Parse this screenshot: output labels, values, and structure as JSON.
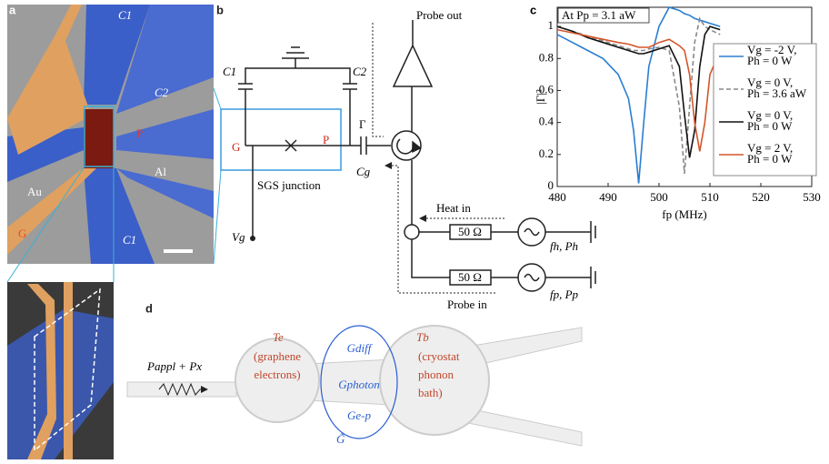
{
  "panels": {
    "a": {
      "label": "a",
      "texts": [
        "C1",
        "C2",
        "P",
        "Al",
        "Au",
        "G",
        "C1"
      ]
    },
    "b": {
      "label": "b",
      "texts": [
        "Probe out",
        "C1",
        "C2",
        "Γ",
        "G",
        "P",
        "Cg",
        "SGS junction",
        "Vg",
        "Heat in",
        "50 Ω",
        "fh, Ph",
        "50 Ω",
        "fp, Pp",
        "Probe in"
      ]
    },
    "d": {
      "label": "d",
      "texts": [
        "Pappl + Px",
        "Te",
        "(graphene",
        "electrons)",
        "Gdiff",
        "Gphoton",
        "Ge-p",
        "G̃",
        "Tb",
        "(cryostat",
        "phonon",
        "bath)"
      ]
    }
  },
  "chart_data": {
    "type": "line",
    "label": "c",
    "annotation": "At Pp = 3.1 aW",
    "x_label": "fp (MHz)",
    "y_label": "|Γ|²",
    "x": [
      480,
      483,
      486,
      489,
      492,
      494,
      495,
      496,
      497,
      498,
      500,
      502,
      504,
      505,
      506,
      507,
      508,
      509,
      510,
      512
    ],
    "series": [
      {
        "name": "Vg = -2 V, Ph = 0 W",
        "color": "#2a7ed2",
        "style": "solid",
        "values": [
          0.95,
          0.9,
          0.85,
          0.8,
          0.7,
          0.55,
          0.35,
          0.02,
          0.4,
          0.75,
          1.0,
          1.12,
          1.1,
          1.08,
          1.07,
          1.05,
          1.04,
          1.03,
          1.02,
          1.0
        ]
      },
      {
        "name": "Vg = 0 V, Ph = 3.6 aW",
        "color": "#888888",
        "style": "dashed",
        "values": [
          1.0,
          0.97,
          0.94,
          0.91,
          0.88,
          0.86,
          0.85,
          0.85,
          0.85,
          0.86,
          0.87,
          0.85,
          0.5,
          0.08,
          0.5,
          0.9,
          1.05,
          1.0,
          0.98,
          0.95
        ]
      },
      {
        "name": "Vg = 0 V, Ph = 0 W",
        "color": "#111111",
        "style": "solid",
        "values": [
          1.0,
          0.97,
          0.93,
          0.9,
          0.87,
          0.85,
          0.84,
          0.83,
          0.83,
          0.84,
          0.86,
          0.88,
          0.75,
          0.45,
          0.18,
          0.35,
          0.75,
          0.95,
          1.0,
          0.98
        ]
      },
      {
        "name": "Vg = 2 V, Ph = 0 W",
        "color": "#d4562a",
        "style": "solid",
        "values": [
          0.98,
          0.96,
          0.94,
          0.92,
          0.9,
          0.89,
          0.88,
          0.87,
          0.87,
          0.87,
          0.9,
          0.92,
          0.88,
          0.85,
          0.7,
          0.4,
          0.22,
          0.4,
          0.7,
          0.85
        ]
      }
    ],
    "xlim": [
      480,
      530
    ],
    "xticks": [
      480,
      490,
      500,
      510,
      520,
      530
    ],
    "ylim": [
      0,
      1.12
    ],
    "yticks": [
      0,
      0.2,
      0.4,
      0.6,
      0.8,
      1
    ]
  }
}
